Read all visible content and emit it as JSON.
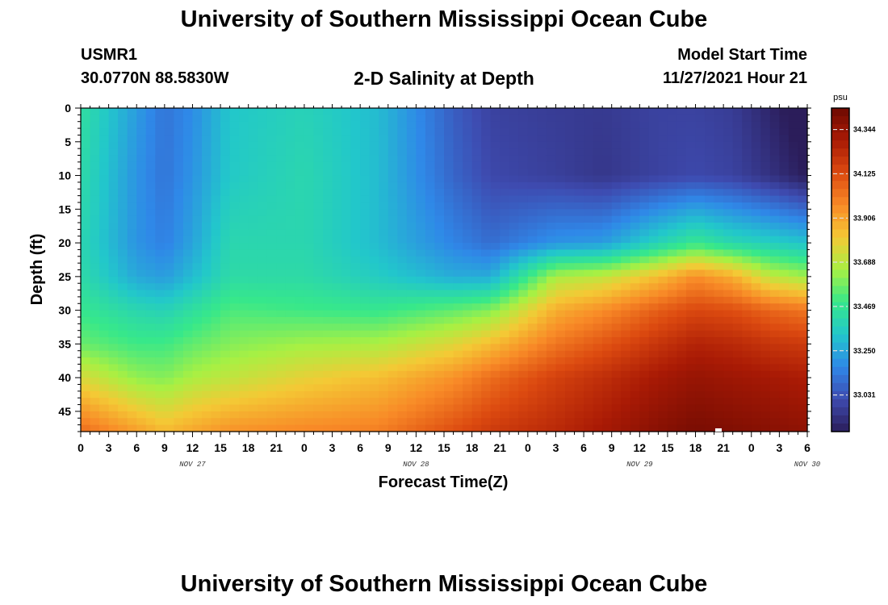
{
  "header": {
    "title": "University of Southern Mississippi Ocean Cube",
    "station_id": "USMR1",
    "station_coords": "30.0770N  88.5830W",
    "subtitle": "2-D Salinity at Depth",
    "start_label": "Model Start Time",
    "start_value": "11/27/2021 Hour 21"
  },
  "footer": {
    "title": "University of Southern Mississippi Ocean Cube"
  },
  "colorbar": {
    "unit": "psu",
    "ticks": [
      "34.344",
      "34.125",
      "33.906",
      "33.688",
      "33.469",
      "33.250",
      "33.031"
    ],
    "min": 32.85,
    "max": 34.45,
    "colors": [
      "#2b1d5a",
      "#3e4bb0",
      "#2f88e8",
      "#22c7cb",
      "#37e88a",
      "#a8f043",
      "#f4c935",
      "#f88a27",
      "#dc4a10",
      "#a91a05",
      "#6e0a02"
    ]
  },
  "chart_data": {
    "type": "heatmap",
    "title": "2-D Salinity at Depth",
    "xlabel": "Forecast Time(Z)",
    "ylabel": "Depth (ft)",
    "unit": "psu",
    "x_tick_labels": [
      "0",
      "3",
      "6",
      "9",
      "12",
      "15",
      "18",
      "21",
      "0",
      "3",
      "6",
      "9",
      "12",
      "15",
      "18",
      "21",
      "0",
      "3",
      "6",
      "9",
      "12",
      "15",
      "18",
      "21",
      "0",
      "3",
      "6"
    ],
    "date_labels": [
      {
        "label": "NOV 27",
        "at_hour": 12
      },
      {
        "label": "NOV 28",
        "at_hour": 36
      },
      {
        "label": "NOV 29",
        "at_hour": 60
      },
      {
        "label": "NOV 30",
        "at_hour": 78
      }
    ],
    "x_range_hours": [
      0,
      78
    ],
    "y_ticks": [
      0,
      5,
      10,
      15,
      20,
      25,
      30,
      35,
      40,
      45
    ],
    "ylim": [
      0,
      48
    ],
    "y_inverted": true,
    "color_range": [
      32.85,
      34.45
    ],
    "depths": [
      0,
      10,
      20,
      25,
      30,
      35,
      40,
      48
    ],
    "profiles": [
      {
        "hour": 0,
        "values": [
          33.44,
          33.42,
          33.4,
          33.42,
          33.48,
          33.56,
          33.75,
          34.05
        ]
      },
      {
        "hour": 6,
        "values": [
          33.22,
          33.2,
          33.2,
          33.25,
          33.4,
          33.5,
          33.62,
          33.92
        ]
      },
      {
        "hour": 9,
        "values": [
          33.12,
          33.12,
          33.15,
          33.22,
          33.38,
          33.5,
          33.6,
          33.85
        ]
      },
      {
        "hour": 12,
        "values": [
          33.18,
          33.2,
          33.24,
          33.3,
          33.44,
          33.55,
          33.66,
          33.9
        ]
      },
      {
        "hour": 16,
        "values": [
          33.33,
          33.34,
          33.4,
          33.42,
          33.52,
          33.6,
          33.7,
          33.95
        ]
      },
      {
        "hour": 24,
        "values": [
          33.38,
          33.4,
          33.4,
          33.42,
          33.5,
          33.64,
          33.78,
          33.98
        ]
      },
      {
        "hour": 32,
        "values": [
          33.3,
          33.3,
          33.3,
          33.35,
          33.48,
          33.66,
          33.84,
          34.0
        ]
      },
      {
        "hour": 40,
        "values": [
          33.06,
          33.08,
          33.16,
          33.26,
          33.55,
          33.76,
          33.95,
          34.12
        ]
      },
      {
        "hour": 44,
        "values": [
          32.98,
          33.0,
          33.1,
          33.26,
          33.6,
          33.84,
          34.04,
          34.18
        ]
      },
      {
        "hour": 51,
        "values": [
          32.96,
          32.97,
          33.2,
          33.66,
          33.88,
          34.02,
          34.16,
          34.24
        ]
      },
      {
        "hour": 56,
        "values": [
          32.95,
          32.94,
          33.22,
          33.7,
          33.96,
          34.1,
          34.22,
          34.3
        ]
      },
      {
        "hour": 62,
        "values": [
          32.98,
          32.98,
          33.38,
          33.84,
          34.08,
          34.2,
          34.3,
          34.38
        ]
      },
      {
        "hour": 66,
        "values": [
          32.98,
          33.0,
          33.48,
          33.96,
          34.14,
          34.26,
          34.34,
          34.42
        ]
      },
      {
        "hour": 70,
        "values": [
          32.96,
          32.98,
          33.4,
          33.88,
          34.12,
          34.24,
          34.32,
          34.4
        ]
      },
      {
        "hour": 74,
        "values": [
          32.88,
          32.92,
          33.36,
          33.7,
          34.06,
          34.2,
          34.3,
          34.38
        ]
      },
      {
        "hour": 78,
        "values": [
          32.8,
          32.85,
          33.32,
          33.64,
          34.02,
          34.18,
          34.28,
          34.36
        ]
      }
    ]
  }
}
